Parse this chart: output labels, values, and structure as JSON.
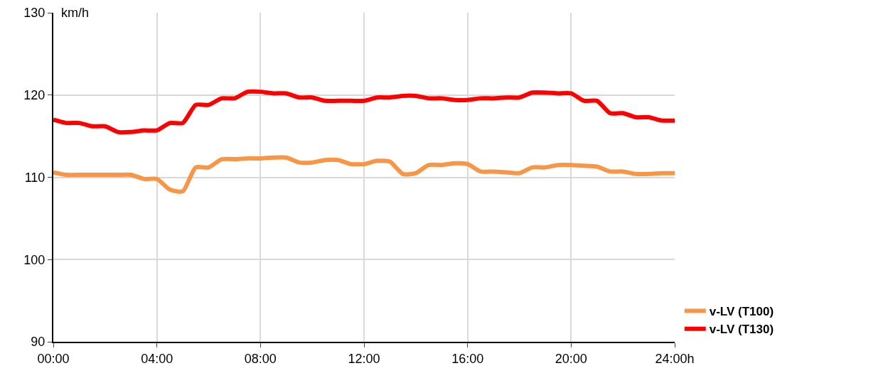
{
  "chart_data": {
    "type": "line",
    "ylabel": "km/h",
    "x": [
      0,
      0.5,
      1,
      1.5,
      2,
      2.5,
      3,
      3.5,
      4,
      4.5,
      5,
      5.5,
      6,
      6.5,
      7,
      7.5,
      8,
      8.5,
      9,
      9.5,
      10,
      10.5,
      11,
      11.5,
      12,
      12.5,
      13,
      13.5,
      14,
      14.5,
      15,
      15.5,
      16,
      16.5,
      17,
      17.5,
      18,
      18.5,
      19,
      19.5,
      20,
      20.5,
      21,
      21.5,
      22,
      22.5,
      23,
      23.5,
      24
    ],
    "series": [
      {
        "name": "v-LV (T100)",
        "color": "#f79646",
        "values": [
          110.6,
          110.3,
          110.3,
          110.3,
          110.3,
          110.3,
          110.3,
          109.8,
          109.8,
          108.5,
          108.3,
          111.2,
          111.2,
          112.2,
          112.2,
          112.3,
          112.3,
          112.4,
          112.4,
          111.8,
          111.8,
          112.1,
          112.1,
          111.6,
          111.6,
          112,
          111.9,
          110.4,
          110.5,
          111.5,
          111.5,
          111.7,
          111.6,
          110.7,
          110.7,
          110.6,
          110.5,
          111.2,
          111.2,
          111.5,
          111.5,
          111.4,
          111.3,
          110.7,
          110.7,
          110.4,
          110.4,
          110.5,
          110.5
        ]
      },
      {
        "name": "v-LV (T130)",
        "color": "#ff0000",
        "values": [
          117,
          116.6,
          116.6,
          116.2,
          116.2,
          115.5,
          115.5,
          115.7,
          115.7,
          116.6,
          116.6,
          118.8,
          118.8,
          119.6,
          119.6,
          120.4,
          120.4,
          120.2,
          120.2,
          119.7,
          119.7,
          119.3,
          119.3,
          119.3,
          119.3,
          119.7,
          119.7,
          119.9,
          119.9,
          119.6,
          119.6,
          119.4,
          119.4,
          119.6,
          119.6,
          119.7,
          119.7,
          120.3,
          120.3,
          120.2,
          120.2,
          119.3,
          119.3,
          117.8,
          117.8,
          117.3,
          117.3,
          116.9,
          116.9
        ]
      }
    ],
    "xlim": [
      0,
      24
    ],
    "xticks": [
      {
        "value": 0,
        "label": "00:00"
      },
      {
        "value": 4,
        "label": "04:00"
      },
      {
        "value": 8,
        "label": "08:00"
      },
      {
        "value": 12,
        "label": "12:00"
      },
      {
        "value": 16,
        "label": "16:00"
      },
      {
        "value": 20,
        "label": "20:00"
      },
      {
        "value": 24,
        "label": "24:00h"
      }
    ],
    "ylim": [
      90,
      130
    ],
    "yticks": [
      90,
      100,
      110,
      120,
      130
    ],
    "grid": true,
    "legend": "bottom right",
    "marker": "none",
    "line_style": "solid"
  }
}
